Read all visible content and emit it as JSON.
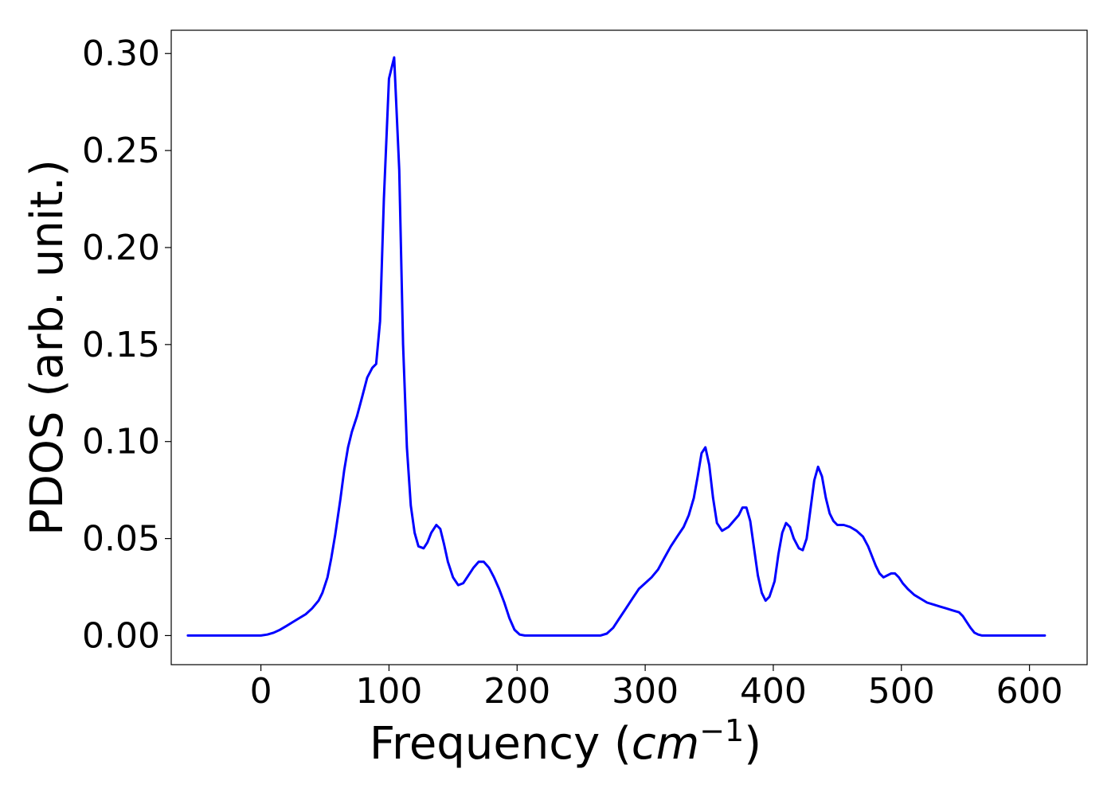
{
  "chart_data": {
    "type": "line",
    "xlabel_text": "Frequency (",
    "xlabel_math": "cm",
    "xlabel_sup": "−1",
    "xlabel_close": ")",
    "ylabel": "PDOS (arb. unit.)",
    "xlim": [
      -70,
      645
    ],
    "ylim": [
      -0.015,
      0.312
    ],
    "xticks": [
      0,
      100,
      200,
      300,
      400,
      500,
      600
    ],
    "xtick_labels": [
      "0",
      "100",
      "200",
      "300",
      "400",
      "500",
      "600"
    ],
    "yticks": [
      0.0,
      0.05,
      0.1,
      0.15,
      0.2,
      0.25,
      0.3
    ],
    "ytick_labels": [
      "0.00",
      "0.05",
      "0.10",
      "0.15",
      "0.20",
      "0.25",
      "0.30"
    ],
    "grid": false,
    "series": [
      {
        "color": "#0000ff",
        "x": [
          -57,
          -40,
          -20,
          0,
          5,
          10,
          15,
          20,
          25,
          30,
          35,
          40,
          45,
          48,
          52,
          55,
          58,
          62,
          65,
          68,
          71,
          75,
          79,
          83,
          87,
          90,
          93,
          96,
          100,
          104,
          108,
          111,
          114,
          117,
          120,
          123,
          127,
          130,
          133,
          137,
          140,
          143,
          146,
          150,
          154,
          158,
          162,
          166,
          170,
          174,
          178,
          182,
          186,
          190,
          194,
          198,
          202,
          206,
          210,
          230,
          250,
          265,
          270,
          275,
          280,
          285,
          290,
          295,
          300,
          305,
          310,
          315,
          320,
          325,
          330,
          334,
          338,
          341,
          344,
          347,
          350,
          353,
          356,
          360,
          365,
          369,
          373,
          376,
          379,
          382,
          385,
          388,
          391,
          394,
          397,
          401,
          404,
          407,
          410,
          413,
          416,
          420,
          423,
          426,
          429,
          432,
          435,
          438,
          441,
          444,
          447,
          450,
          455,
          460,
          465,
          470,
          474,
          477,
          480,
          483,
          486,
          489,
          492,
          495,
          498,
          501,
          505,
          510,
          515,
          520,
          525,
          530,
          535,
          540,
          545,
          548,
          551,
          554,
          557,
          560,
          563,
          567,
          575,
          600,
          612
        ],
        "y": [
          0.0,
          0.0,
          0.0,
          0.0,
          0.0005,
          0.0015,
          0.003,
          0.005,
          0.007,
          0.009,
          0.011,
          0.014,
          0.018,
          0.022,
          0.03,
          0.04,
          0.052,
          0.07,
          0.085,
          0.097,
          0.105,
          0.113,
          0.123,
          0.133,
          0.138,
          0.14,
          0.162,
          0.225,
          0.287,
          0.298,
          0.24,
          0.15,
          0.097,
          0.067,
          0.053,
          0.046,
          0.045,
          0.048,
          0.053,
          0.057,
          0.055,
          0.047,
          0.038,
          0.03,
          0.026,
          0.027,
          0.031,
          0.035,
          0.038,
          0.038,
          0.035,
          0.03,
          0.024,
          0.017,
          0.009,
          0.003,
          0.0005,
          0.0,
          0.0,
          0.0,
          0.0,
          0.0,
          0.001,
          0.004,
          0.009,
          0.014,
          0.019,
          0.024,
          0.027,
          0.03,
          0.034,
          0.04,
          0.046,
          0.051,
          0.056,
          0.062,
          0.071,
          0.082,
          0.094,
          0.097,
          0.088,
          0.071,
          0.058,
          0.054,
          0.056,
          0.059,
          0.062,
          0.066,
          0.066,
          0.059,
          0.045,
          0.031,
          0.022,
          0.018,
          0.02,
          0.028,
          0.042,
          0.053,
          0.058,
          0.056,
          0.05,
          0.045,
          0.044,
          0.05,
          0.065,
          0.08,
          0.087,
          0.082,
          0.071,
          0.063,
          0.059,
          0.057,
          0.057,
          0.056,
          0.054,
          0.051,
          0.046,
          0.041,
          0.036,
          0.032,
          0.03,
          0.031,
          0.032,
          0.032,
          0.03,
          0.027,
          0.024,
          0.021,
          0.019,
          0.017,
          0.016,
          0.015,
          0.014,
          0.013,
          0.012,
          0.01,
          0.007,
          0.004,
          0.0015,
          0.0005,
          0.0,
          0.0,
          0.0,
          0.0,
          0.0
        ]
      }
    ]
  }
}
